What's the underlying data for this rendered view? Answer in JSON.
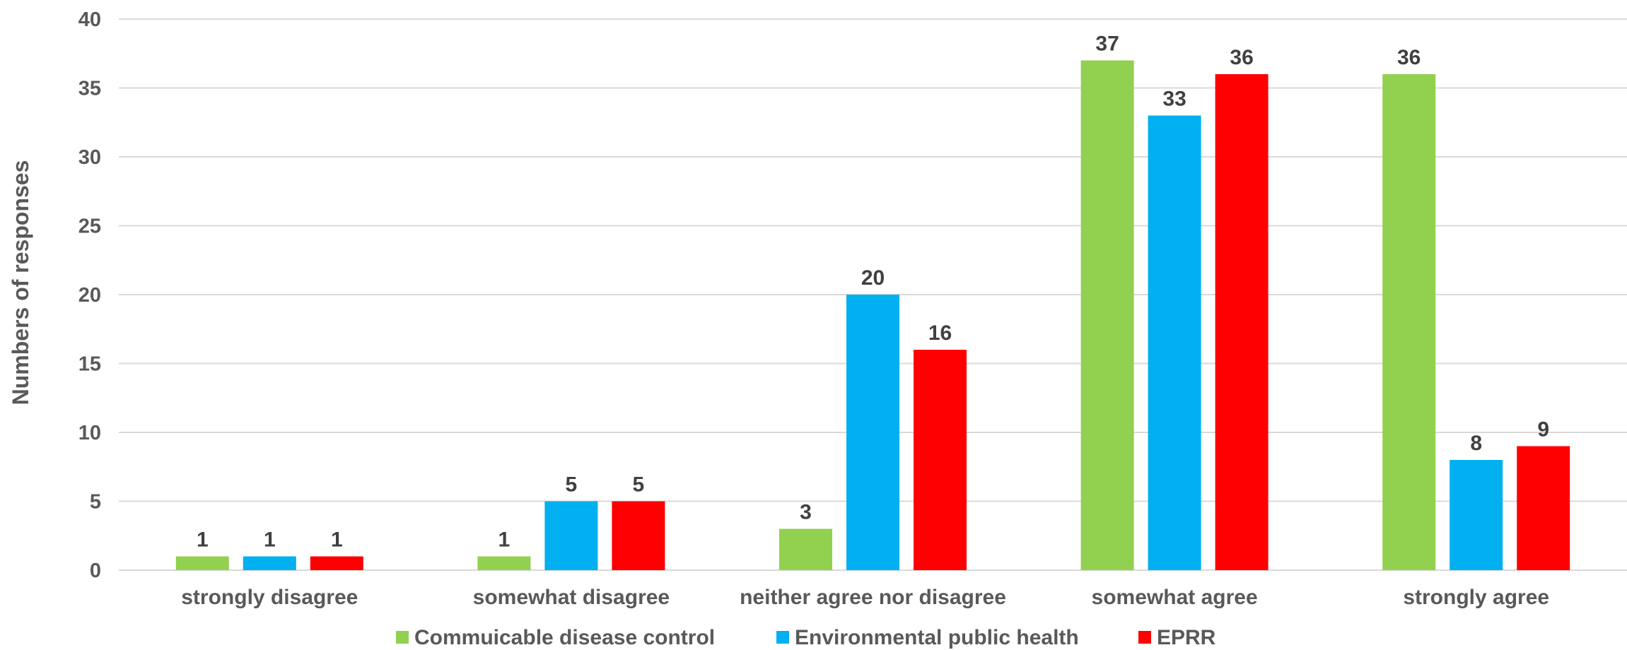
{
  "chart_data": {
    "type": "bar",
    "title": "",
    "xlabel": "",
    "ylabel": "Numbers of responses",
    "ylim": [
      0,
      40
    ],
    "yticks": [
      0,
      5,
      10,
      15,
      20,
      25,
      30,
      35,
      40
    ],
    "grid": true,
    "legend_position": "bottom",
    "categories": [
      "strongly disagree",
      "somewhat disagree",
      "neither agree nor disagree",
      "somewhat agree",
      "strongly agree"
    ],
    "series": [
      {
        "name": "Commuicable disease control",
        "color": "#92D050",
        "values": [
          1,
          1,
          3,
          37,
          36
        ]
      },
      {
        "name": "Environmental public health",
        "color": "#00B0F0",
        "values": [
          1,
          5,
          20,
          33,
          8
        ]
      },
      {
        "name": "EPRR",
        "color": "#FF0000",
        "values": [
          1,
          5,
          16,
          36,
          9
        ]
      }
    ],
    "data_labels": [
      [
        1,
        1,
        3,
        37,
        36
      ],
      [
        1,
        5,
        20,
        33,
        8
      ],
      [
        1,
        5,
        16,
        36,
        9
      ]
    ]
  }
}
